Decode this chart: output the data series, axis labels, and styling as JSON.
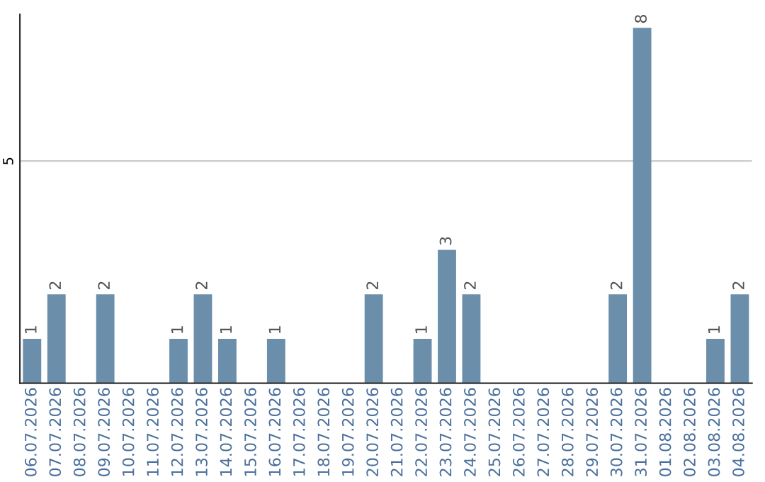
{
  "chart_data": {
    "type": "bar",
    "categories": [
      "06.07.2026",
      "07.07.2026",
      "08.07.2026",
      "09.07.2026",
      "10.07.2026",
      "11.07.2026",
      "12.07.2026",
      "13.07.2026",
      "14.07.2026",
      "15.07.2026",
      "16.07.2026",
      "17.07.2026",
      "18.07.2026",
      "19.07.2026",
      "20.07.2026",
      "21.07.2026",
      "22.07.2026",
      "23.07.2026",
      "24.07.2026",
      "25.07.2026",
      "26.07.2026",
      "27.07.2026",
      "28.07.2026",
      "29.07.2026",
      "30.07.2026",
      "31.07.2026",
      "01.08.2026",
      "02.08.2026",
      "03.08.2026",
      "04.08.2026"
    ],
    "values": [
      1,
      2,
      0,
      2,
      0,
      0,
      1,
      2,
      1,
      0,
      1,
      0,
      0,
      0,
      2,
      0,
      1,
      3,
      2,
      0,
      0,
      0,
      0,
      0,
      2,
      8,
      0,
      0,
      1,
      2
    ],
    "value_labels": [
      "1",
      "2",
      null,
      "2",
      null,
      null,
      "1",
      "2",
      "1",
      null,
      "1",
      null,
      null,
      null,
      "2",
      null,
      "1",
      "3",
      "2",
      null,
      null,
      null,
      null,
      null,
      "2",
      "8",
      null,
      null,
      "1",
      "2"
    ],
    "color": "#6b8eab",
    "ylim": [
      0,
      8.3
    ],
    "yticks": [
      5
    ],
    "grid": "y",
    "legend": false
  }
}
